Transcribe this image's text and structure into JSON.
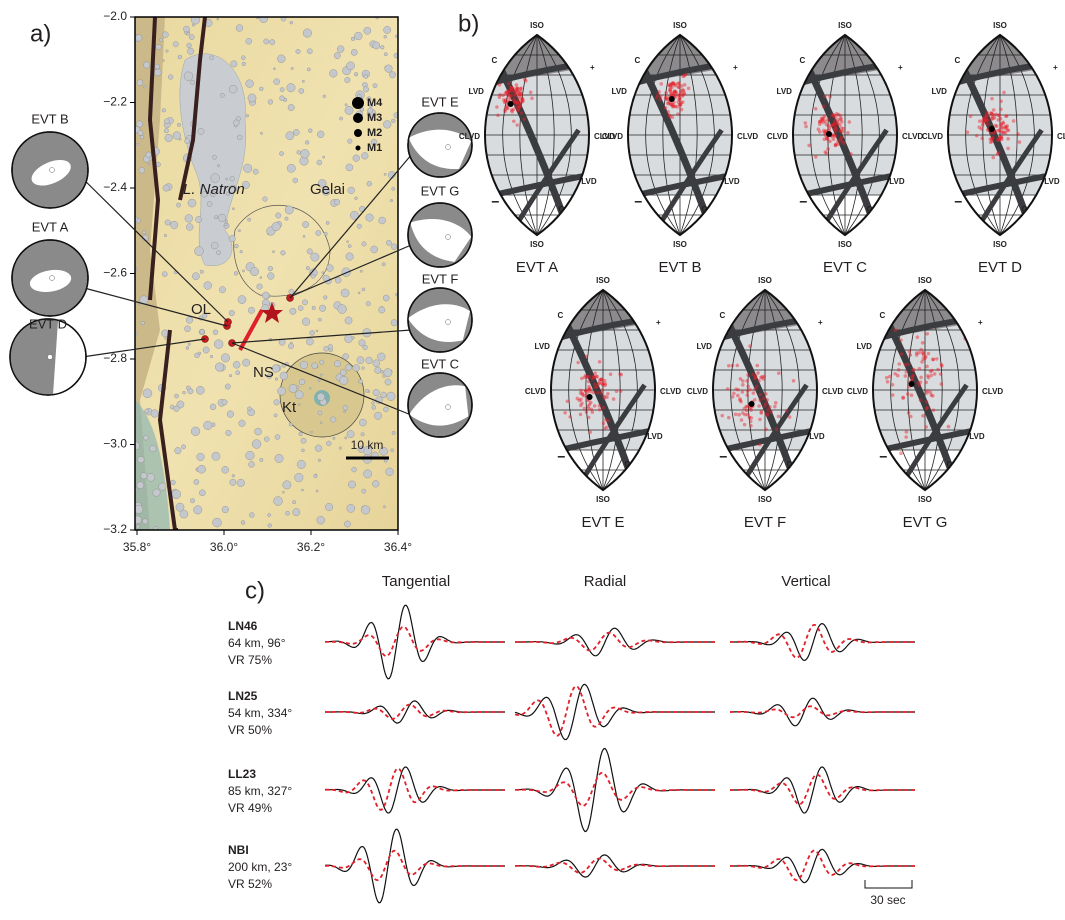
{
  "panel_a": {
    "label": "a)",
    "y_ticks": [
      "−2.0",
      "−2.2",
      "−2.4",
      "−2.6",
      "−2.8",
      "−3.0",
      "−3.2"
    ],
    "x_ticks": [
      "35.8°",
      "36.0°",
      "36.2°",
      "36.4°"
    ],
    "places": [
      "L. Natron",
      "Gelai",
      "OL",
      "NS",
      "Kt"
    ],
    "magnitude_legend": [
      "M4",
      "M3",
      "M2",
      "M1"
    ],
    "scale": "10 km",
    "events": [
      "EVT B",
      "EVT A",
      "EVT D",
      "EVT E",
      "EVT G",
      "EVT F",
      "EVT C"
    ]
  },
  "panel_b": {
    "label": "b)",
    "lune_labels": {
      "iso": "ISO",
      "c": "C",
      "plus": "+",
      "lvd": "LVD",
      "clvd": "CLVD",
      "minus": "−"
    },
    "events": [
      "EVT A",
      "EVT B",
      "EVT C",
      "EVT D",
      "EVT E",
      "EVT F",
      "EVT G"
    ]
  },
  "panel_c": {
    "label": "c)",
    "components": [
      "Tangential",
      "Radial",
      "Vertical"
    ],
    "stations": [
      {
        "name": "LN46",
        "distance": "64 km, 96°",
        "vr": "VR 75%"
      },
      {
        "name": "LN25",
        "distance": "54 km, 334°",
        "vr": "VR 50%"
      },
      {
        "name": "LL23",
        "distance": "85 km, 327°",
        "vr": "VR 49%"
      },
      {
        "name": "NBI",
        "distance": "200 km, 23°",
        "vr": "VR 52%"
      }
    ],
    "scale": "30 sec"
  }
}
